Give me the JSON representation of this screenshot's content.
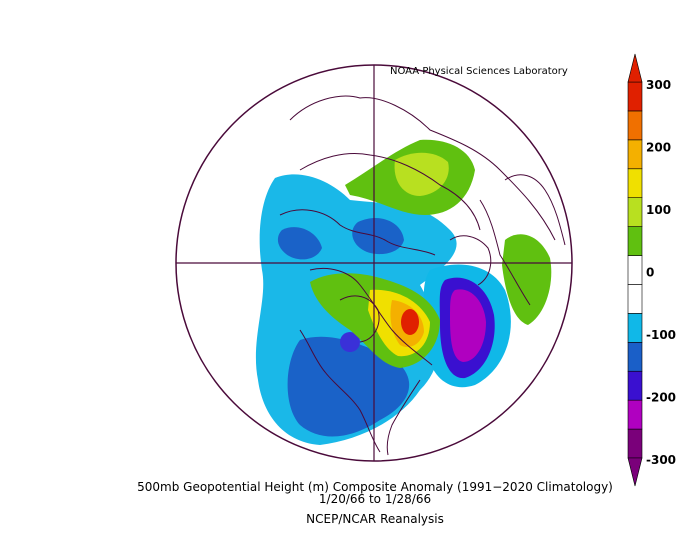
{
  "credit": "NOAA Physical Sciences Laboratory",
  "caption": {
    "line1": "500mb Geopotential Height (m) Composite Anomaly (1991−2020 Climatology)",
    "line2": "1/20/66   to 1/28/66",
    "line3": "NCEP/NCAR Reanalysis"
  },
  "colorbar": {
    "ticks": [
      "300",
      "200",
      "100",
      "0",
      "-100",
      "-200",
      "-300"
    ],
    "colors": [
      "#7a007a",
      "#b000c0",
      "#3a10d0",
      "#1a5fc8",
      "#10b8e8",
      "#ffffff",
      "#ffffff",
      "#60c010",
      "#b8e020",
      "#f0e000",
      "#f4b000",
      "#f07000",
      "#e02000"
    ]
  }
}
